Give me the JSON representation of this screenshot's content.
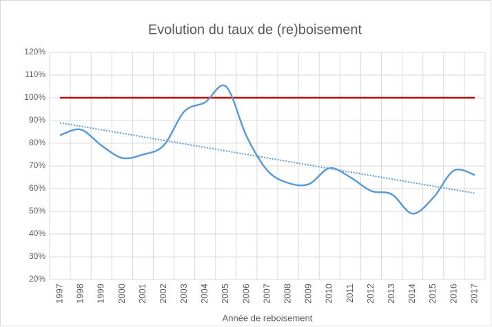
{
  "chart_data": {
    "type": "line",
    "title": "Evolution du taux de (re)boisement",
    "x_label": "Année de reboisement",
    "categories": [
      "1997",
      "1998",
      "1999",
      "2000",
      "2001",
      "2002",
      "2003",
      "2004",
      "2005",
      "2006",
      "2007",
      "2008",
      "2009",
      "2010",
      "2011",
      "2012",
      "2013",
      "2014",
      "2015",
      "2016",
      "2017"
    ],
    "series": [
      {
        "color": "#5b9bd5",
        "smooth": true,
        "values": [
          83.5,
          86,
          79,
          73.5,
          75,
          79,
          94,
          98,
          105,
          83,
          68,
          62.5,
          62,
          69,
          65,
          59,
          57.5,
          49,
          56,
          68,
          66
        ]
      }
    ],
    "reference_line": {
      "value": 100,
      "color": "#c00000"
    },
    "trendline": {
      "start": 89,
      "end": 58,
      "color": "#5b9bd5",
      "style": "dotted"
    },
    "ylim": [
      20,
      120
    ],
    "yticks": [
      {
        "value": 20,
        "label": "20%"
      },
      {
        "value": 30,
        "label": "30%"
      },
      {
        "value": 40,
        "label": "40%"
      },
      {
        "value": 50,
        "label": "50%"
      },
      {
        "value": 60,
        "label": "60%"
      },
      {
        "value": 70,
        "label": "70%"
      },
      {
        "value": 80,
        "label": "80%"
      },
      {
        "value": 90,
        "label": "90%"
      },
      {
        "value": 100,
        "label": "100%"
      },
      {
        "value": 110,
        "label": "110%"
      },
      {
        "value": 120,
        "label": "120%"
      }
    ],
    "grid": true
  }
}
